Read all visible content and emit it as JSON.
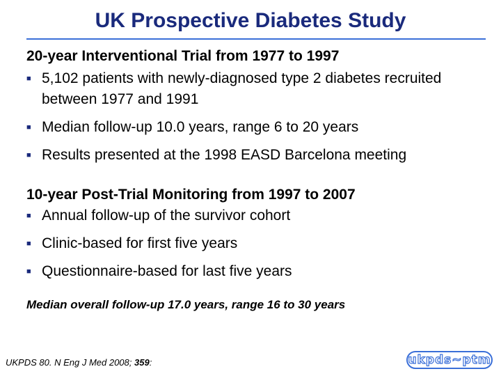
{
  "slide": {
    "title": "UK Prospective Diabetes Study"
  },
  "trial": {
    "heading": "20-year Interventional Trial from 1977 to 1997",
    "bullets": [
      "5,102 patients with newly-diagnosed type 2 diabetes recruited between 1977 and 1991",
      "Median follow-up 10.0 years, range 6 to 20 years",
      "Results presented at the 1998 EASD Barcelona meeting"
    ]
  },
  "post_trial": {
    "heading": "10-year Post-Trial Monitoring from 1997 to 2007",
    "bullets": [
      "Annual follow-up of the survivor cohort",
      "Clinic-based for first five years",
      "Questionnaire-based for last five years"
    ]
  },
  "summary": "Median overall follow-up 17.0 years, range 16 to 30 years",
  "citation": {
    "prefix": "UKPDS 80. N Eng J Med 2008; ",
    "volume": "359",
    "suffix": ":"
  },
  "logo": {
    "text": "ukpds~ptm"
  },
  "icons": {
    "bullet": "square-bullet-icon"
  },
  "colors": {
    "title": "#1a2a7c",
    "accent": "#3a6fd8"
  }
}
